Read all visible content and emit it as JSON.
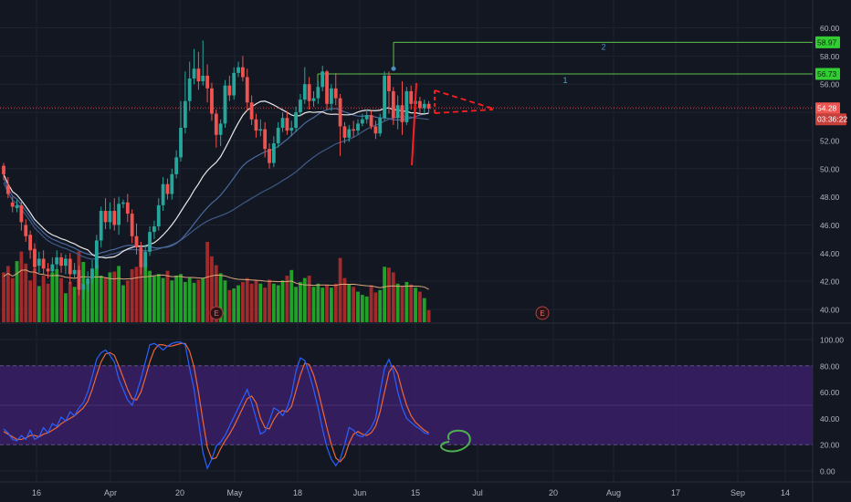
{
  "colors": {
    "background": "#131722",
    "grid": "#1f2331",
    "axis_text": "#b2b5be",
    "up": "#26a69a",
    "down": "#ef5350",
    "vol_up": "#22a12a",
    "vol_down": "#a32a2a",
    "ma_white": "#e8e8e8",
    "ma_blue": "#4a6a9e",
    "ma_navy": "#3e5a86",
    "vol_ma": "#d9a77a",
    "stoch_k": "#2962ff",
    "stoch_d": "#e8673b",
    "stoch_band": "#3b1f66",
    "target_line": "#5cc24a",
    "target_label_bg": "#4caf50",
    "last_price_bg": "#ef5350",
    "drawing_red": "#ff1e1e",
    "circle_green": "#4caf50"
  },
  "chart_data": [
    {
      "type": "candlestick",
      "pane": "price",
      "y_axis": {
        "min": 40,
        "max": 60,
        "ticks": [
          "60.00",
          "58.00",
          "56.00",
          "54.00",
          "52.00",
          "50.00",
          "48.00",
          "46.00",
          "44.00",
          "42.00",
          "40.00"
        ]
      },
      "x_axis": {
        "ticks": [
          "16",
          "Apr",
          "20",
          "May",
          "18",
          "Jun",
          "15",
          "Jul",
          "20",
          "Aug",
          "17",
          "Sep",
          "14"
        ]
      },
      "last_price_label": "54.28",
      "countdown_label": "03:36:22",
      "target_levels": [
        {
          "label": "1",
          "price_label": "56.73",
          "value": 56.73
        },
        {
          "label": "2",
          "price_label": "58.97",
          "value": 58.97
        }
      ],
      "earnings_markers": [
        "E",
        "E"
      ],
      "candles": [
        [
          50.2,
          49.6,
          50.4,
          49.2
        ],
        [
          48.8,
          48.2,
          49.4,
          47.9
        ],
        [
          47.6,
          47.3,
          48.0,
          46.9
        ],
        [
          47.2,
          47.4,
          47.8,
          46.9
        ],
        [
          47.4,
          46.2,
          47.7,
          45.6
        ],
        [
          46.0,
          45.2,
          46.4,
          44.8
        ],
        [
          45.3,
          44.2,
          45.6,
          43.6
        ],
        [
          44.3,
          43.0,
          44.7,
          42.6
        ],
        [
          43.1,
          43.6,
          44.1,
          42.6
        ],
        [
          43.6,
          42.9,
          44.2,
          42.5
        ],
        [
          42.9,
          42.7,
          43.3,
          42.2
        ],
        [
          42.7,
          43.2,
          43.7,
          42.6
        ],
        [
          43.2,
          43.7,
          44.2,
          42.8
        ],
        [
          43.7,
          43.1,
          44.0,
          42.6
        ],
        [
          43.1,
          43.6,
          43.9,
          42.5
        ],
        [
          43.6,
          42.5,
          44.0,
          41.8
        ],
        [
          42.5,
          42.8,
          43.3,
          42.2
        ],
        [
          42.8,
          41.4,
          43.1,
          41.0
        ],
        [
          41.4,
          41.8,
          42.4,
          40.7
        ],
        [
          41.8,
          42.2,
          42.7,
          41.3
        ],
        [
          42.2,
          42.9,
          43.5,
          41.8
        ],
        [
          42.9,
          44.9,
          45.3,
          42.6
        ],
        [
          44.9,
          47.0,
          47.3,
          44.4
        ],
        [
          47.0,
          46.2,
          47.9,
          45.7
        ],
        [
          46.2,
          47.0,
          47.6,
          45.7
        ],
        [
          47.0,
          46.0,
          47.9,
          45.6
        ],
        [
          46.0,
          47.5,
          48.0,
          45.3
        ],
        [
          47.5,
          47.6,
          47.8,
          47.2
        ],
        [
          47.6,
          46.8,
          48.2,
          46.2
        ],
        [
          46.8,
          45.2,
          47.1,
          44.7
        ],
        [
          45.2,
          44.4,
          46.1,
          43.9
        ],
        [
          44.4,
          43.0,
          44.8,
          42.5
        ],
        [
          43.0,
          44.1,
          44.6,
          42.7
        ],
        [
          44.1,
          45.5,
          45.9,
          43.8
        ],
        [
          45.5,
          45.9,
          46.3,
          45.0
        ],
        [
          45.9,
          47.4,
          47.9,
          45.6
        ],
        [
          47.4,
          48.9,
          49.4,
          47.0
        ],
        [
          48.9,
          48.2,
          49.3,
          47.8
        ],
        [
          48.2,
          49.6,
          50.0,
          47.8
        ],
        [
          49.6,
          50.8,
          51.3,
          49.3
        ],
        [
          50.8,
          52.9,
          54.8,
          50.5
        ],
        [
          52.9,
          54.8,
          56.9,
          52.5
        ],
        [
          54.8,
          56.4,
          57.6,
          54.1
        ],
        [
          56.4,
          57.1,
          58.5,
          56.0
        ],
        [
          57.1,
          56.2,
          58.3,
          55.6
        ],
        [
          56.2,
          56.6,
          59.1,
          55.9
        ],
        [
          56.6,
          55.7,
          57.4,
          54.7
        ],
        [
          55.7,
          53.9,
          56.1,
          53.4
        ],
        [
          53.9,
          52.4,
          54.2,
          51.5
        ],
        [
          52.4,
          53.2,
          53.5,
          51.6
        ],
        [
          53.2,
          55.9,
          56.3,
          52.9
        ],
        [
          55.9,
          55.2,
          56.6,
          54.8
        ],
        [
          55.2,
          56.8,
          57.2,
          54.9
        ],
        [
          56.8,
          57.2,
          57.6,
          56.5
        ],
        [
          57.2,
          56.5,
          58.0,
          56.2
        ],
        [
          56.5,
          54.7,
          57.1,
          54.1
        ],
        [
          54.7,
          53.5,
          55.2,
          53.1
        ],
        [
          53.5,
          52.7,
          53.9,
          52.2
        ],
        [
          52.7,
          52.8,
          53.5,
          52.3
        ],
        [
          52.8,
          51.4,
          53.3,
          50.8
        ],
        [
          51.4,
          50.4,
          51.8,
          50.0
        ],
        [
          50.4,
          51.8,
          52.3,
          50.1
        ],
        [
          51.8,
          52.9,
          53.3,
          51.5
        ],
        [
          52.9,
          53.6,
          54.0,
          52.6
        ],
        [
          53.6,
          52.7,
          54.1,
          52.4
        ],
        [
          52.7,
          52.9,
          53.4,
          52.3
        ],
        [
          52.9,
          54.0,
          54.4,
          52.6
        ],
        [
          54.0,
          54.9,
          55.3,
          53.7
        ],
        [
          54.9,
          56.0,
          57.2,
          54.6
        ],
        [
          56.0,
          54.8,
          56.5,
          54.2
        ],
        [
          54.8,
          55.0,
          55.5,
          54.4
        ],
        [
          55.0,
          55.8,
          56.2,
          54.6
        ],
        [
          55.8,
          56.9,
          57.3,
          55.5
        ],
        [
          56.9,
          54.6,
          57.0,
          54.2
        ],
        [
          54.6,
          55.7,
          56.0,
          54.1
        ],
        [
          55.7,
          55.0,
          56.8,
          54.5
        ],
        [
          55.0,
          53.0,
          55.3,
          50.9
        ],
        [
          53.0,
          52.2,
          53.3,
          51.8
        ],
        [
          52.2,
          52.8,
          53.1,
          51.9
        ],
        [
          52.8,
          52.7,
          53.4,
          52.2
        ],
        [
          52.7,
          53.2,
          53.5,
          52.4
        ],
        [
          53.2,
          53.5,
          53.9,
          53.0
        ],
        [
          53.5,
          53.8,
          54.2,
          53.2
        ],
        [
          53.8,
          53.0,
          54.1,
          52.8
        ],
        [
          53.0,
          52.5,
          53.4,
          52.1
        ],
        [
          52.5,
          53.6,
          53.9,
          52.3
        ],
        [
          53.6,
          56.6,
          56.9,
          53.4
        ],
        [
          56.6,
          55.5,
          56.9,
          53.9
        ],
        [
          55.5,
          53.6,
          55.8,
          53.1
        ],
        [
          53.6,
          54.5,
          55.2,
          52.8
        ],
        [
          54.5,
          53.3,
          56.2,
          52.4
        ],
        [
          53.3,
          55.5,
          55.8,
          53.1
        ],
        [
          55.5,
          54.6,
          55.9,
          54.2
        ],
        [
          54.6,
          54.8,
          55.1,
          54.1
        ],
        [
          54.8,
          54.3,
          55.1,
          53.9
        ],
        [
          54.3,
          54.6,
          54.9,
          53.9
        ],
        [
          54.6,
          54.28,
          54.8,
          54.0
        ]
      ],
      "volume": [
        0.62,
        0.7,
        0.55,
        0.76,
        0.88,
        0.73,
        0.52,
        0.67,
        0.45,
        0.58,
        0.48,
        0.62,
        0.66,
        0.55,
        0.36,
        0.5,
        0.44,
        0.88,
        0.75,
        0.52,
        0.61,
        0.72,
        0.58,
        0.55,
        0.62,
        0.63,
        0.7,
        0.46,
        0.52,
        0.66,
        0.69,
        0.8,
        0.74,
        0.64,
        0.57,
        0.6,
        0.55,
        0.64,
        0.52,
        0.58,
        0.6,
        0.5,
        0.55,
        0.49,
        0.53,
        0.55,
        1.0,
        0.82,
        0.71,
        0.61,
        0.52,
        0.4,
        0.42,
        0.46,
        0.5,
        0.55,
        0.48,
        0.53,
        0.48,
        0.43,
        0.53,
        0.48,
        0.46,
        0.52,
        0.58,
        0.65,
        0.44,
        0.5,
        0.55,
        0.58,
        0.44,
        0.48,
        0.43,
        0.46,
        0.43,
        0.48,
        0.8,
        0.55,
        0.47,
        0.44,
        0.38,
        0.34,
        0.32,
        0.46,
        0.37,
        0.4,
        0.69,
        0.68,
        0.62,
        0.48,
        0.45,
        0.5,
        0.47,
        0.43,
        0.38,
        0.3,
        0.15
      ]
    },
    {
      "type": "line",
      "pane": "stochastic",
      "y_axis": {
        "min": 0,
        "max": 100,
        "ticks": [
          "100.00",
          "80.00",
          "60.00",
          "40.00",
          "20.00",
          "0.00"
        ]
      },
      "band": [
        20,
        80
      ],
      "series": [
        {
          "id": "k",
          "values": [
            32,
            29,
            24,
            23,
            27,
            24,
            31,
            24,
            26,
            33,
            29,
            36,
            34,
            41,
            38,
            45,
            42,
            48,
            52,
            60,
            72,
            85,
            90,
            92,
            88,
            83,
            70,
            62,
            54,
            50,
            59,
            70,
            83,
            96,
            97,
            95,
            92,
            95,
            97,
            98,
            98,
            96,
            78,
            62,
            38,
            14,
            2,
            9,
            19,
            22,
            27,
            34,
            41,
            48,
            55,
            62,
            52,
            40,
            28,
            30,
            38,
            48,
            46,
            42,
            48,
            58,
            76,
            86,
            84,
            74,
            62,
            48,
            32,
            18,
            9,
            4,
            9,
            20,
            33,
            31,
            27,
            26,
            29,
            33,
            40,
            60,
            78,
            85,
            76,
            60,
            48,
            40,
            37,
            34,
            32,
            29,
            28
          ]
        },
        {
          "id": "d",
          "values": [
            30,
            28,
            26,
            24,
            24,
            25,
            27,
            27,
            26,
            28,
            29,
            31,
            33,
            36,
            38,
            40,
            42,
            45,
            48,
            53,
            62,
            73,
            83,
            89,
            90,
            88,
            80,
            71,
            62,
            55,
            54,
            60,
            71,
            83,
            92,
            96,
            96,
            95,
            95,
            96,
            97,
            97,
            91,
            79,
            60,
            38,
            18,
            9,
            10,
            17,
            23,
            28,
            34,
            41,
            48,
            55,
            57,
            52,
            40,
            33,
            32,
            39,
            44,
            46,
            45,
            49,
            61,
            73,
            82,
            81,
            73,
            61,
            47,
            33,
            20,
            10,
            7,
            11,
            21,
            28,
            30,
            28,
            27,
            29,
            34,
            45,
            60,
            75,
            80,
            74,
            61,
            50,
            42,
            37,
            34,
            31,
            29
          ]
        }
      ]
    }
  ],
  "annotations": {
    "target_1_text": "1",
    "target_2_text": "2"
  }
}
